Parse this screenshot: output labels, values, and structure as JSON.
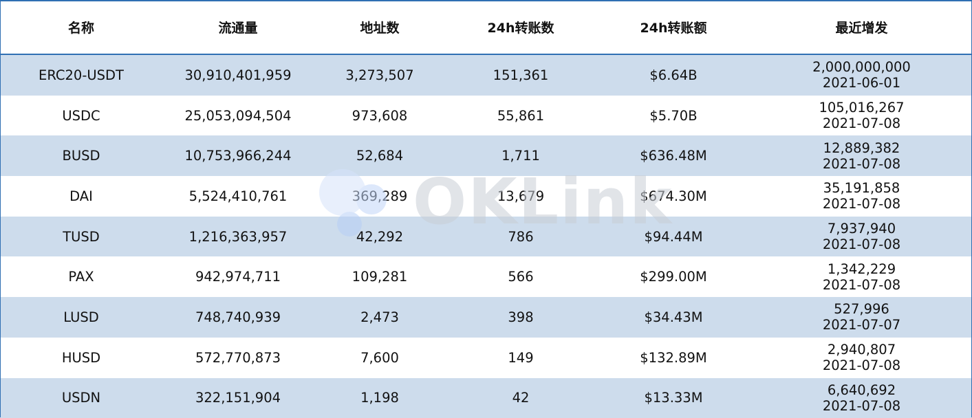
{
  "table": {
    "headers": [
      "名称",
      "流通量",
      "地址数",
      "24h转账数",
      "24h转账额",
      "最近增发"
    ],
    "rows": [
      {
        "name": "ERC20-USDT",
        "supply": "30,910,401,959",
        "addresses": "3,273,507",
        "transfers_24h": "151,361",
        "volume_24h": "$6.64B",
        "latest_mint_amount": "2,000,000,000",
        "latest_mint_date": "2021-06-01"
      },
      {
        "name": "USDC",
        "supply": "25,053,094,504",
        "addresses": "973,608",
        "transfers_24h": "55,861",
        "volume_24h": "$5.70B",
        "latest_mint_amount": "105,016,267",
        "latest_mint_date": "2021-07-08"
      },
      {
        "name": "BUSD",
        "supply": "10,753,966,244",
        "addresses": "52,684",
        "transfers_24h": "1,711",
        "volume_24h": "$636.48M",
        "latest_mint_amount": "12,889,382",
        "latest_mint_date": "2021-07-08"
      },
      {
        "name": "DAI",
        "supply": "5,524,410,761",
        "addresses": "369,289",
        "transfers_24h": "13,679",
        "volume_24h": "$674.30M",
        "latest_mint_amount": "35,191,858",
        "latest_mint_date": "2021-07-08"
      },
      {
        "name": "TUSD",
        "supply": "1,216,363,957",
        "addresses": "42,292",
        "transfers_24h": "786",
        "volume_24h": "$94.44M",
        "latest_mint_amount": "7,937,940",
        "latest_mint_date": "2021-07-08"
      },
      {
        "name": "PAX",
        "supply": "942,974,711",
        "addresses": "109,281",
        "transfers_24h": "566",
        "volume_24h": "$299.00M",
        "latest_mint_amount": "1,342,229",
        "latest_mint_date": "2021-07-08"
      },
      {
        "name": "LUSD",
        "supply": "748,740,939",
        "addresses": "2,473",
        "transfers_24h": "398",
        "volume_24h": "$34.43M",
        "latest_mint_amount": "527,996",
        "latest_mint_date": "2021-07-07"
      },
      {
        "name": "HUSD",
        "supply": "572,770,873",
        "addresses": "7,600",
        "transfers_24h": "149",
        "volume_24h": "$132.89M",
        "latest_mint_amount": "2,940,807",
        "latest_mint_date": "2021-07-08"
      },
      {
        "name": "USDN",
        "supply": "322,151,904",
        "addresses": "1,198",
        "transfers_24h": "42",
        "volume_24h": "$13.33M",
        "latest_mint_amount": "6,640,692",
        "latest_mint_date": "2021-07-08"
      }
    ]
  },
  "watermark": {
    "text": "OKLink",
    "icon": "oklink-logo-icon"
  },
  "colors": {
    "accent_border": "#2f6fb3",
    "stripe": "#cddcec",
    "watermark": "#c9ced6"
  }
}
